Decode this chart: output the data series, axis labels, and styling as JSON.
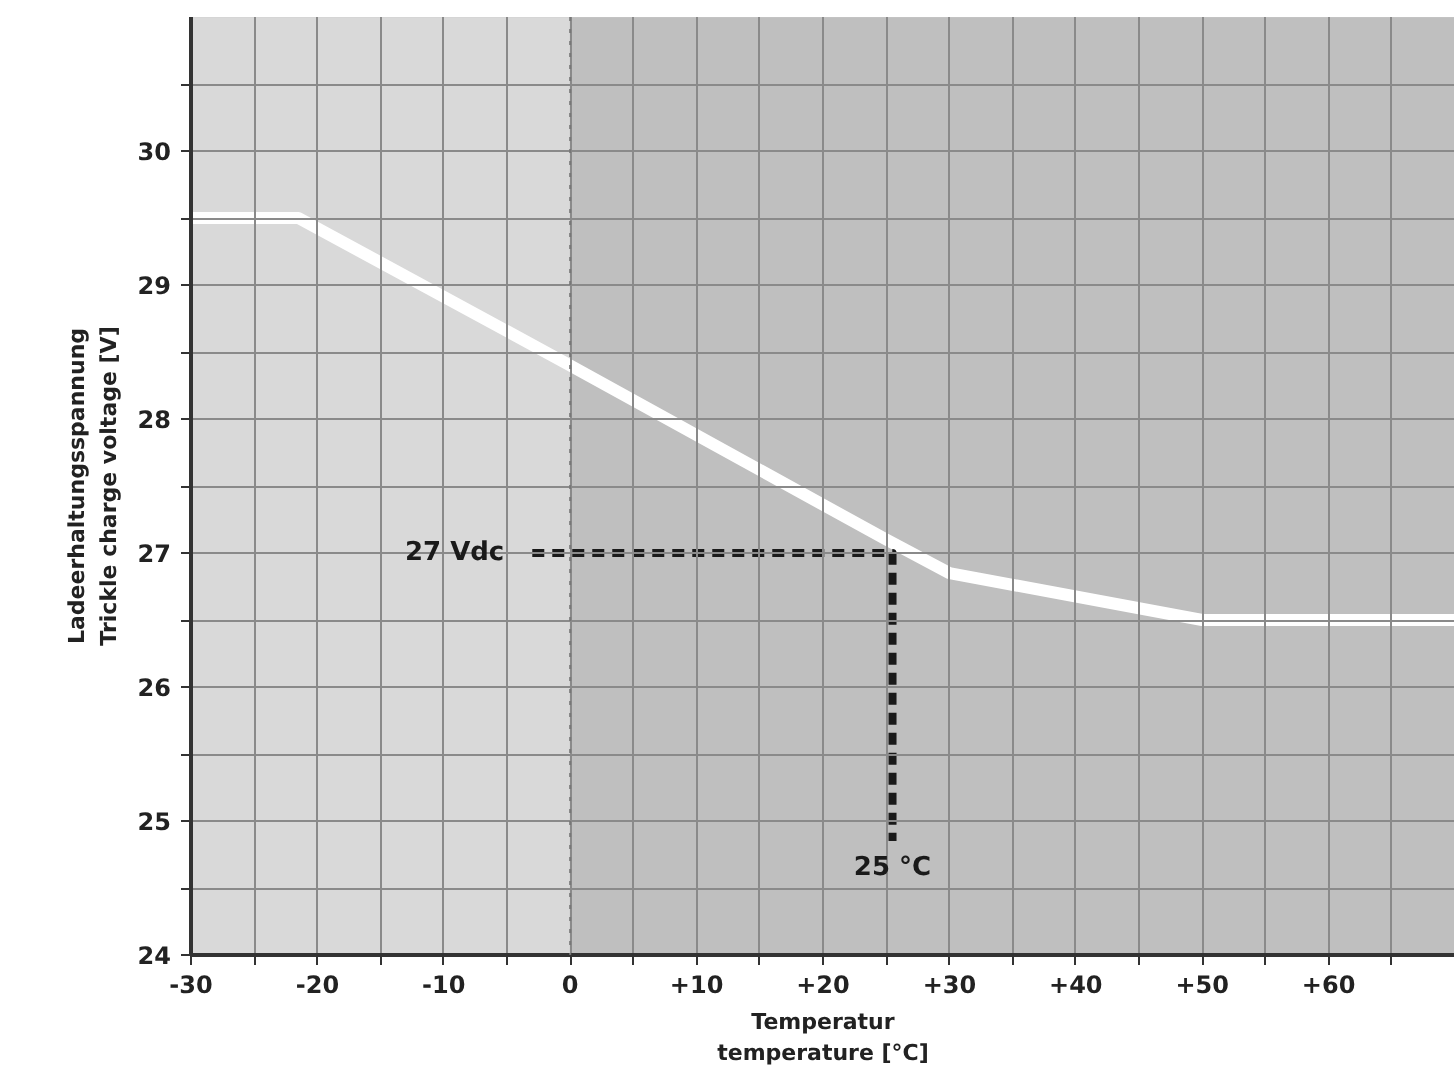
{
  "chart_data": {
    "type": "line",
    "xlabel": "Temperatur\ntemperature [°C]",
    "ylabel": "Ladeerhaltungsspannung\nTrickle charge voltage [V]",
    "xlim": [
      -30,
      70
    ],
    "ylim": [
      24,
      31
    ],
    "xticks": [
      -30,
      {
        "value": -25,
        "label": null
      },
      -20,
      {
        "value": -15,
        "label": null
      },
      -10,
      {
        "value": -5,
        "label": null
      },
      0,
      {
        "value": 5,
        "label": null
      },
      {
        "value": 10,
        "label": "+10"
      },
      {
        "value": 15,
        "label": null
      },
      {
        "value": 20,
        "label": "+20"
      },
      {
        "value": 25,
        "label": null
      },
      {
        "value": 30,
        "label": "+30"
      },
      {
        "value": 35,
        "label": null
      },
      {
        "value": 40,
        "label": "+40"
      },
      {
        "value": 45,
        "label": null
      },
      {
        "value": 50,
        "label": "+50"
      },
      {
        "value": 55,
        "label": null
      },
      {
        "value": 60,
        "label": "+60"
      },
      {
        "value": 65,
        "label": null
      }
    ],
    "yticks": [
      24,
      {
        "value": 24.5,
        "label": null
      },
      25,
      {
        "value": 25.5,
        "label": null
      },
      26,
      {
        "value": 26.5,
        "label": null
      },
      27,
      {
        "value": 27.5,
        "label": null
      },
      28,
      {
        "value": 28.5,
        "label": null
      },
      29,
      {
        "value": 29.5,
        "label": null
      },
      30,
      {
        "value": 30.5,
        "label": null
      }
    ],
    "grid": true,
    "line_style": "solid",
    "marker": "none",
    "series": [
      {
        "color": "#ffffff",
        "x": [
          -30,
          -21.5,
          0,
          25,
          30,
          50,
          70
        ],
        "values": [
          29.5,
          29.5,
          28.4,
          27.1,
          26.85,
          26.5,
          26.5
        ]
      },
      {
        "color": "#1a1a1a",
        "line_style": "dashed",
        "x": [
          -3,
          25.5,
          25.5
        ],
        "values": [
          27,
          27,
          24.85
        ]
      }
    ],
    "bands": [
      {
        "axis": "x",
        "from": -30,
        "to": 0,
        "color": "#d9d9d9"
      },
      {
        "axis": "x",
        "from": 0,
        "to": 70,
        "color": "#bfbfbf"
      }
    ],
    "ref_lines": [
      {
        "axis": "x",
        "value": 0,
        "color": "#777777",
        "line_style": "dotted"
      }
    ],
    "annotations": [
      {
        "text": "27 Vdc",
        "x": -3,
        "y": 27
      },
      {
        "text": "25 °C",
        "x": 25.5,
        "y": 24.85
      }
    ]
  }
}
